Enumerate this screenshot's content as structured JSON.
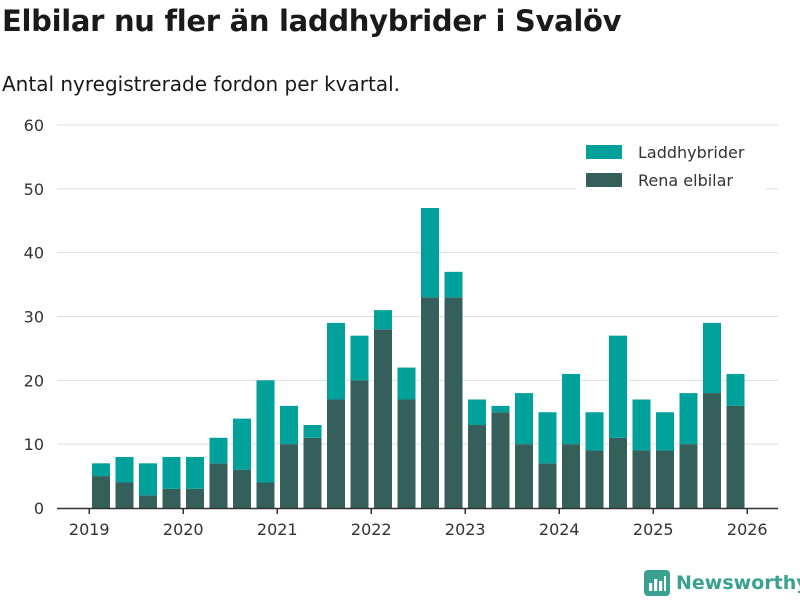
{
  "title": "Elbilar nu fler än laddhybrider i Svalöv",
  "subtitle": "Antal nyregistrerade fordon per kvartal.",
  "brand": {
    "name": "Newsworthy",
    "icon": "newsworthy-logo-icon"
  },
  "colors": {
    "laddhybrider": "#00a19a",
    "elbilar": "#355f5a",
    "grid": "#dddddd",
    "axis": "#333333",
    "text": "#333333"
  },
  "chart_data": {
    "type": "bar",
    "stacked": true,
    "title": "Elbilar nu fler än laddhybrider i Svalöv",
    "subtitle": "Antal nyregistrerade fordon per kvartal.",
    "xlabel": "",
    "ylabel": "",
    "ylim": [
      0,
      60
    ],
    "yticks": [
      0,
      10,
      20,
      30,
      40,
      50,
      60
    ],
    "grid": true,
    "legend_position": "top-right",
    "year_ticks": [
      {
        "label": "2019",
        "index": -0.5
      },
      {
        "label": "2020",
        "index": 3.5
      },
      {
        "label": "2021",
        "index": 7.5
      },
      {
        "label": "2022",
        "index": 11.5
      },
      {
        "label": "2023",
        "index": 15.5
      },
      {
        "label": "2024",
        "index": 19.5
      },
      {
        "label": "2025",
        "index": 23.5
      },
      {
        "label": "2026",
        "index": 27.5
      }
    ],
    "categories": [
      "2019 Q2",
      "2019 Q3",
      "2019 Q4",
      "2020 Q1",
      "2020 Q2",
      "2020 Q3",
      "2020 Q4",
      "2021 Q1",
      "2021 Q2",
      "2021 Q3",
      "2021 Q4",
      "2022 Q1",
      "2022 Q2",
      "2022 Q3",
      "2022 Q4",
      "2023 Q1",
      "2023 Q2",
      "2023 Q3",
      "2023 Q4",
      "2024 Q1",
      "2024 Q2",
      "2024 Q3",
      "2024 Q4",
      "2025 Q1",
      "2025 Q2",
      "2025 Q3",
      "2025 Q4",
      "2026 Q1"
    ],
    "series": [
      {
        "name": "Rena elbilar",
        "color": "#355f5a",
        "values": [
          5,
          4,
          2,
          3,
          3,
          7,
          6,
          4,
          10,
          11,
          17,
          20,
          28,
          17,
          33,
          33,
          13,
          15,
          10,
          7,
          10,
          9,
          11,
          9,
          9,
          10,
          18,
          16
        ]
      },
      {
        "name": "Laddhybrider",
        "color": "#00a19a",
        "values": [
          2,
          4,
          5,
          5,
          5,
          4,
          8,
          16,
          6,
          2,
          12,
          7,
          3,
          5,
          14,
          4,
          4,
          1,
          8,
          8,
          11,
          6,
          16,
          8,
          6,
          8,
          11,
          5
        ]
      }
    ],
    "legend": [
      {
        "name": "Laddhybrider",
        "color": "#00a19a"
      },
      {
        "name": "Rena elbilar",
        "color": "#355f5a"
      }
    ]
  }
}
